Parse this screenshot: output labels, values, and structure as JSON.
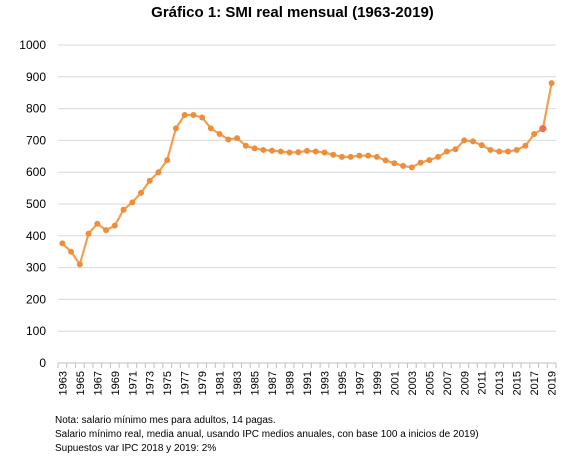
{
  "chart_data": {
    "type": "line",
    "title": "Gráfico 1: SMI real mensual (1963-2019)",
    "xlabel": "",
    "ylabel": "",
    "ylim": [
      0,
      1000
    ],
    "yticks": [
      0,
      100,
      200,
      300,
      400,
      500,
      600,
      700,
      800,
      900,
      1000
    ],
    "xticks": [
      1963,
      1965,
      1967,
      1969,
      1971,
      1973,
      1975,
      1977,
      1979,
      1981,
      1983,
      1985,
      1987,
      1989,
      1991,
      1993,
      1995,
      1997,
      1999,
      2001,
      2003,
      2005,
      2007,
      2009,
      2011,
      2013,
      2015,
      2017,
      2019
    ],
    "grid": "horizontal",
    "legend": "none",
    "colors": {
      "line": "#F0A050",
      "marker": "#EE8E3C",
      "highlight": "#E8744A",
      "grid": "#D9D9D9"
    },
    "x": [
      1963,
      1964,
      1965,
      1966,
      1967,
      1968,
      1969,
      1970,
      1971,
      1972,
      1973,
      1974,
      1975,
      1976,
      1977,
      1978,
      1979,
      1980,
      1981,
      1982,
      1983,
      1984,
      1985,
      1986,
      1987,
      1988,
      1989,
      1990,
      1991,
      1992,
      1993,
      1994,
      1995,
      1996,
      1997,
      1998,
      1999,
      2000,
      2001,
      2002,
      2003,
      2004,
      2005,
      2006,
      2007,
      2008,
      2009,
      2010,
      2011,
      2012,
      2013,
      2014,
      2015,
      2016,
      2017,
      2018,
      2019
    ],
    "series": [
      {
        "values": [
          376,
          350,
          310,
          407,
          438,
          418,
          432,
          482,
          505,
          535,
          573,
          600,
          638,
          738,
          780,
          780,
          772,
          738,
          720,
          703,
          707,
          683,
          675,
          670,
          668,
          665,
          662,
          663,
          667,
          665,
          662,
          655,
          648,
          648,
          652,
          652,
          648,
          637,
          628,
          620,
          615,
          630,
          638,
          648,
          665,
          672,
          700,
          697,
          685,
          670,
          665,
          665,
          670,
          683,
          720,
          737,
          880
        ]
      }
    ],
    "highlight_point": {
      "x": 2018,
      "y": 737
    }
  },
  "notes": [
    "Nota: salario mínimo mes para adultos, 14 pagas.",
    "Salario mínimo real, media  anual, usando IPC medios anuales, con base 100 a inicios de 2019)",
    "Supuestos var IPC 2018 y 2019: 2%"
  ]
}
